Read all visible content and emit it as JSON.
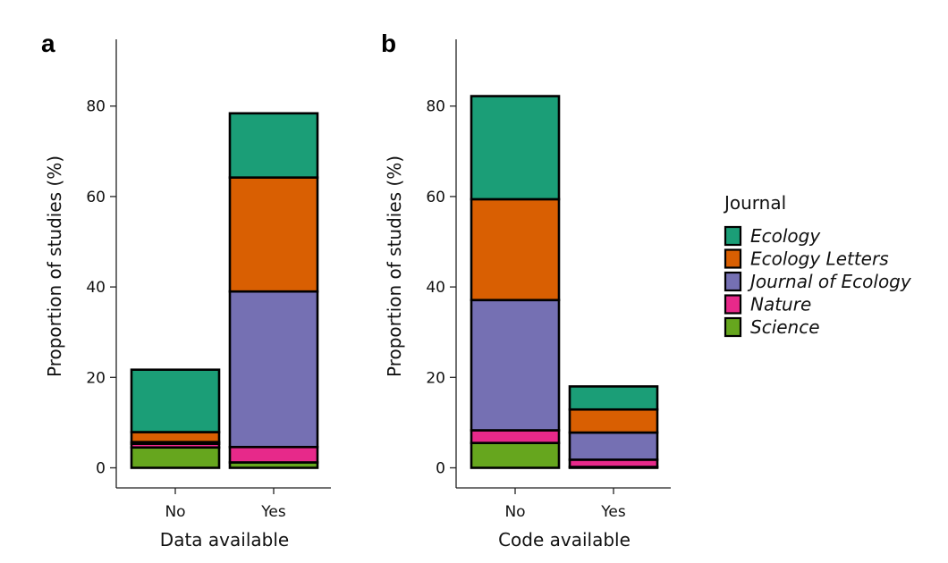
{
  "chart_data": [
    {
      "panel": "a",
      "type": "bar",
      "stacked": true,
      "xlabel": "Data available",
      "ylabel": "Proportion of studies (%)",
      "categories": [
        "No",
        "Yes"
      ],
      "yticks": [
        "0",
        "20",
        "40",
        "60",
        "80"
      ],
      "ylim": [
        0,
        92
      ],
      "series": [
        {
          "name": "Science",
          "color": "#66a61e",
          "values": [
            4.5,
            1.2
          ]
        },
        {
          "name": "Nature",
          "color": "#e7298a",
          "values": [
            0.8,
            3.4
          ]
        },
        {
          "name": "Journal of Ecology",
          "color": "#7570b3",
          "values": [
            0.4,
            34.4
          ]
        },
        {
          "name": "Ecology Letters",
          "color": "#d95f02",
          "values": [
            2.2,
            25.2
          ]
        },
        {
          "name": "Ecology",
          "color": "#1b9e77",
          "values": [
            13.8,
            14.2
          ]
        }
      ]
    },
    {
      "panel": "b",
      "type": "bar",
      "stacked": true,
      "xlabel": "Code available",
      "ylabel": "Proportion of studies (%)",
      "categories": [
        "No",
        "Yes"
      ],
      "yticks": [
        "0",
        "20",
        "40",
        "60",
        "80"
      ],
      "ylim": [
        0,
        92
      ],
      "series": [
        {
          "name": "Science",
          "color": "#66a61e",
          "values": [
            5.5,
            0.2
          ]
        },
        {
          "name": "Nature",
          "color": "#e7298a",
          "values": [
            2.8,
            1.6
          ]
        },
        {
          "name": "Journal of Ecology",
          "color": "#7570b3",
          "values": [
            28.8,
            6.0
          ]
        },
        {
          "name": "Ecology Letters",
          "color": "#d95f02",
          "values": [
            22.3,
            5.1
          ]
        },
        {
          "name": "Ecology",
          "color": "#1b9e77",
          "values": [
            22.8,
            5.1
          ]
        }
      ]
    }
  ],
  "legend": {
    "title": "Journal",
    "placement": "right",
    "items": [
      {
        "name": "Ecology",
        "color": "#1b9e77"
      },
      {
        "name": "Ecology Letters",
        "color": "#d95f02"
      },
      {
        "name": "Journal of Ecology",
        "color": "#7570b3"
      },
      {
        "name": "Nature",
        "color": "#e7298a"
      },
      {
        "name": "Science",
        "color": "#66a61e"
      }
    ]
  }
}
